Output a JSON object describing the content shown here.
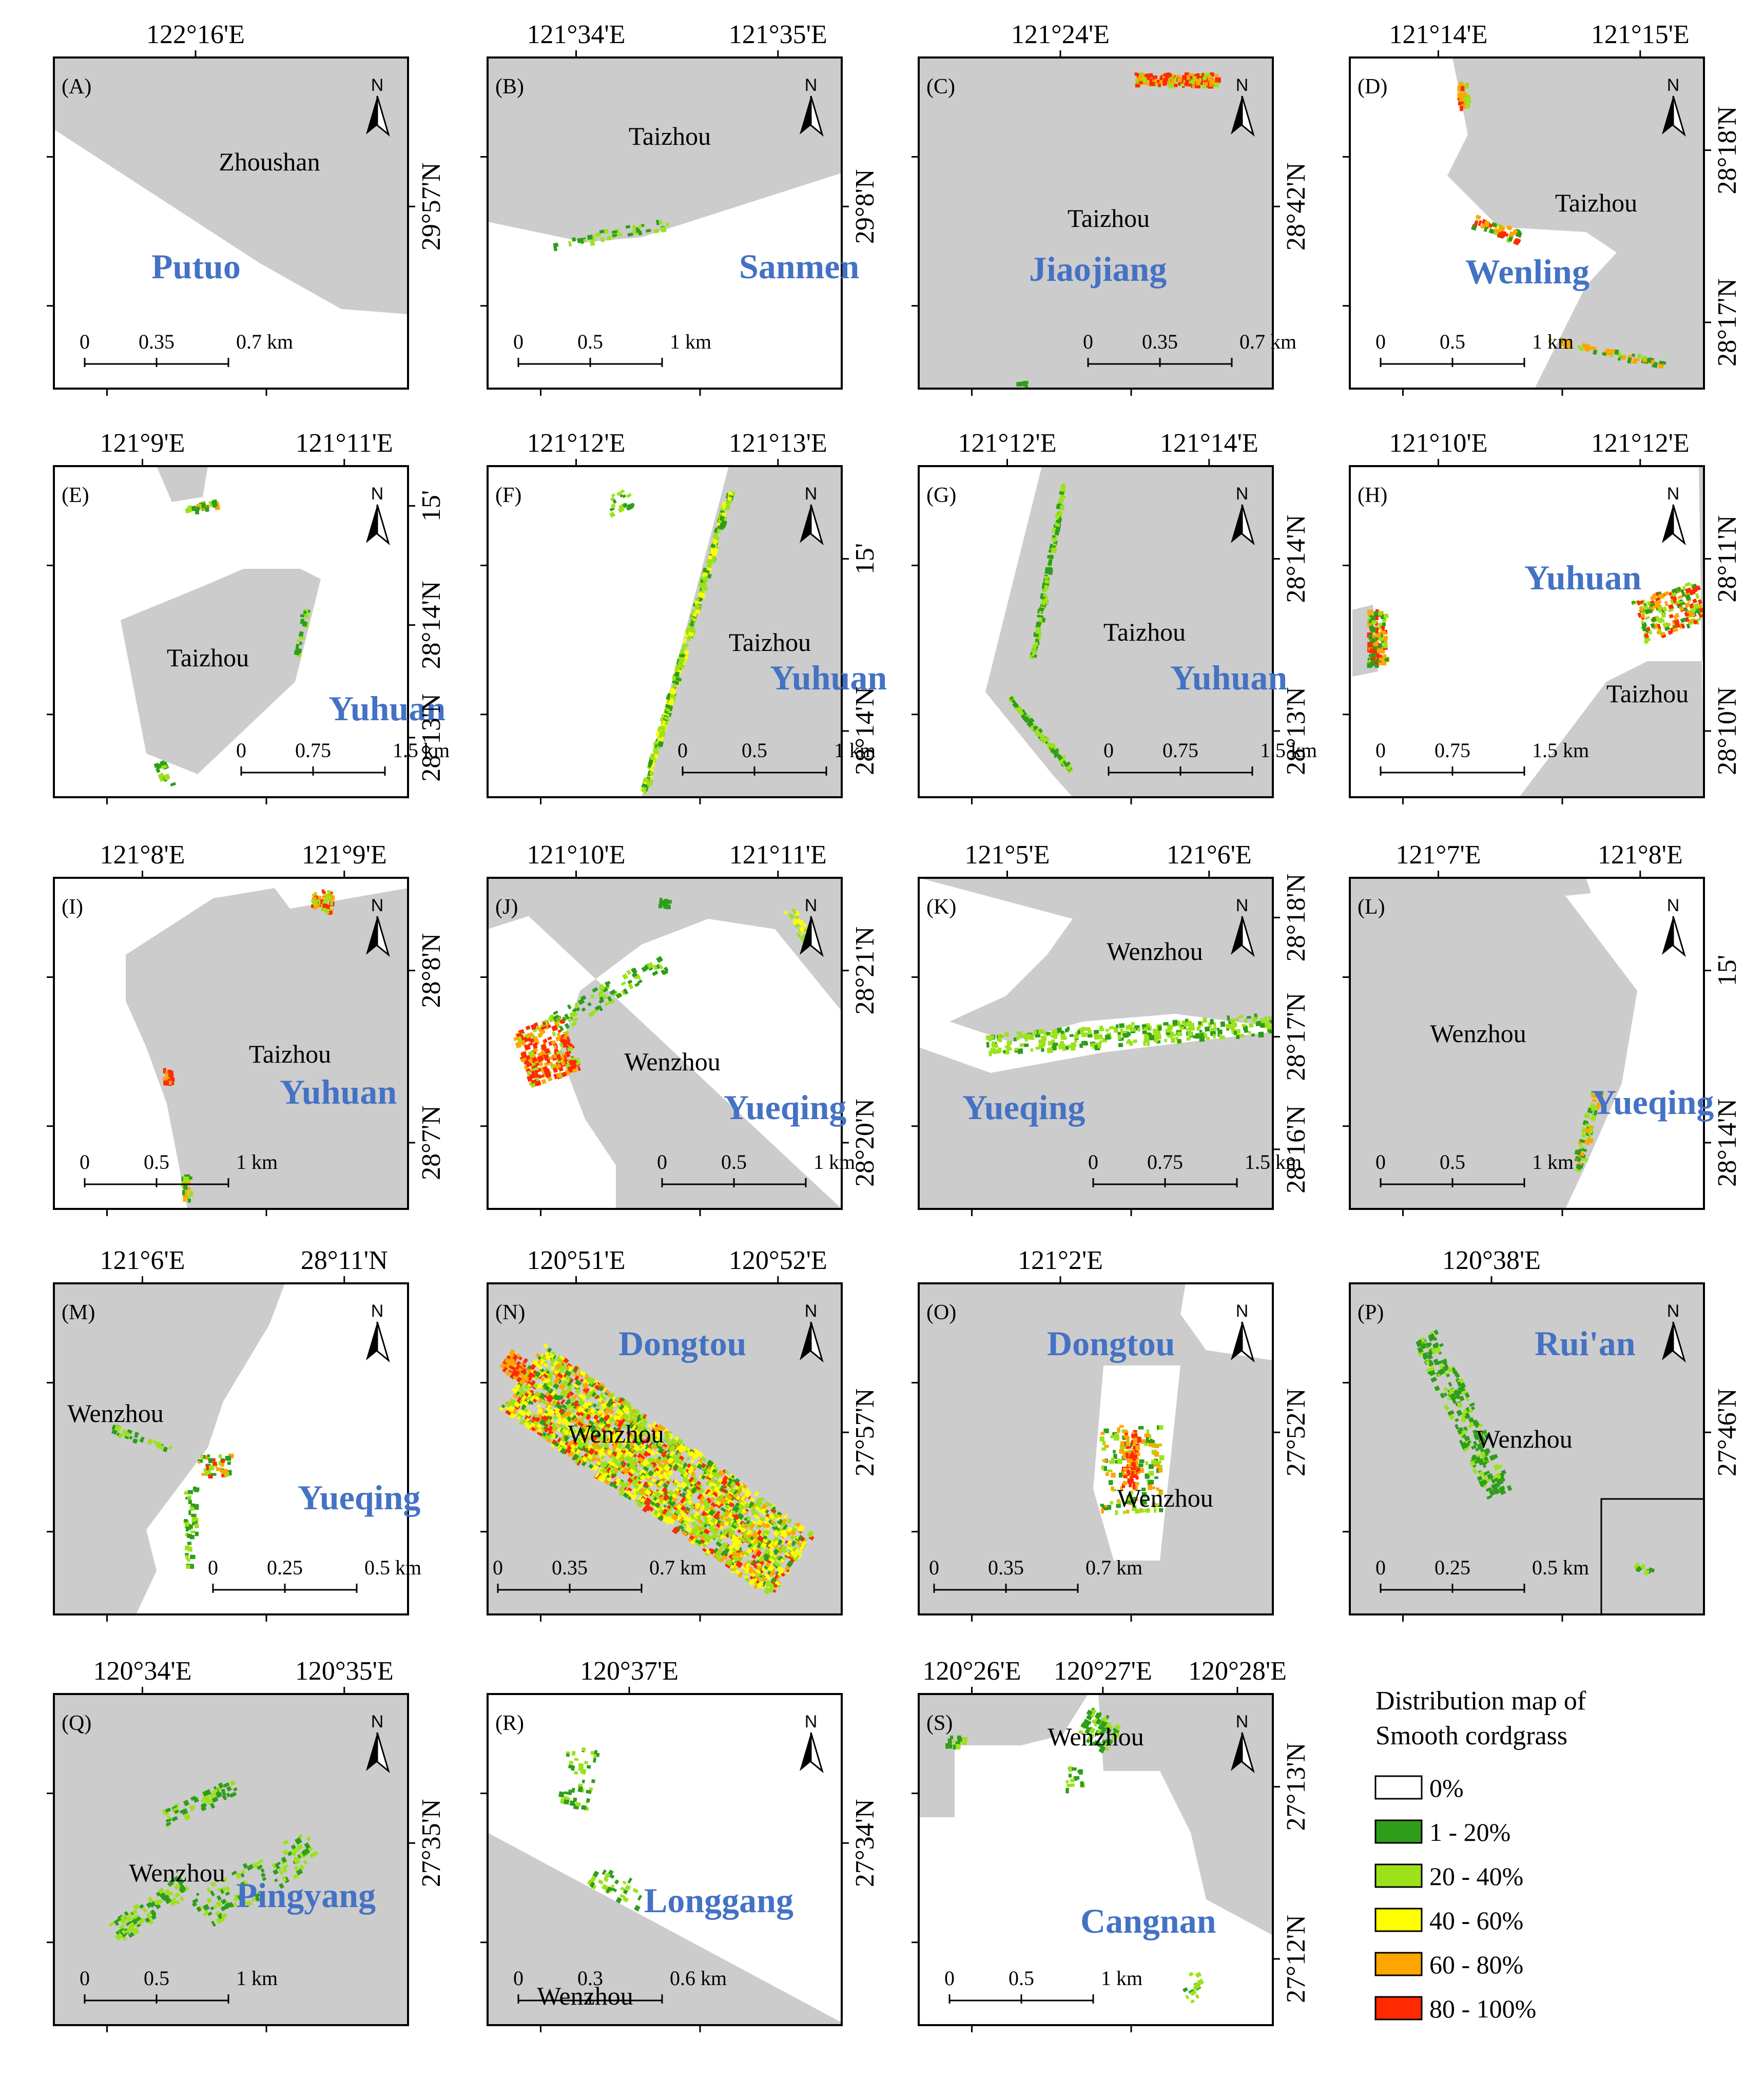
{
  "panels": [
    {
      "id": "A",
      "label": "(A)",
      "place": "Zhoushan",
      "county": "Putuo",
      "lon": [
        "122°16'E"
      ],
      "lat": [
        "29°57'N"
      ],
      "scale": [
        "0",
        "0.35",
        "0.7 km"
      ]
    },
    {
      "id": "B",
      "label": "(B)",
      "place": "Taizhou",
      "county": "Sanmen",
      "lon": [
        "121°34'E",
        "121°35'E"
      ],
      "lat": [
        "29°8'N"
      ],
      "scale": [
        "0",
        "0.5",
        "1 km"
      ]
    },
    {
      "id": "C",
      "label": "(C)",
      "place": "Taizhou",
      "county": "Jiaojiang",
      "lon": [
        "121°24'E"
      ],
      "lat": [
        "28°42'N"
      ],
      "scale": [
        "0",
        "0.35",
        "0.7 km"
      ]
    },
    {
      "id": "D",
      "label": "(D)",
      "place": "Taizhou",
      "county": "Wenling",
      "lon": [
        "121°14'E",
        "121°15'E"
      ],
      "lat": [
        "28°18'N",
        "28°17'N"
      ],
      "scale": [
        "0",
        "0.5",
        "1 km"
      ]
    },
    {
      "id": "E",
      "label": "(E)",
      "place": "Taizhou",
      "county": "Yuhuan",
      "lon": [
        "121°9'E",
        "121°11'E"
      ],
      "lat": [
        "15'",
        "28°14'N",
        "28°13'N"
      ],
      "scale": [
        "0",
        "0.75",
        "1.5 km"
      ]
    },
    {
      "id": "F",
      "label": "(F)",
      "place": "Taizhou",
      "county": "Yuhuan",
      "lon": [
        "121°12'E",
        "121°13'E"
      ],
      "lat": [
        "15'",
        "28°14'N"
      ],
      "scale": [
        "0",
        "0.5",
        "1 km"
      ]
    },
    {
      "id": "G",
      "label": "(G)",
      "place": "Taizhou",
      "county": "Yuhuan",
      "lon": [
        "121°12'E",
        "121°14'E"
      ],
      "lat": [
        "28°14'N",
        "28°13'N"
      ],
      "scale": [
        "0",
        "0.75",
        "1.5 km"
      ]
    },
    {
      "id": "H",
      "label": "(H)",
      "place": "Taizhou",
      "county": "Yuhuan",
      "lon": [
        "121°10'E",
        "121°12'E"
      ],
      "lat": [
        "28°11'N",
        "28°10'N"
      ],
      "scale": [
        "0",
        "0.75",
        "1.5 km"
      ]
    },
    {
      "id": "I",
      "label": "(I)",
      "place": "Taizhou",
      "county": "Yuhuan",
      "lon": [
        "121°8'E",
        "121°9'E"
      ],
      "lat": [
        "28°8'N",
        "28°7'N"
      ],
      "scale": [
        "0",
        "0.5",
        "1 km"
      ]
    },
    {
      "id": "J",
      "label": "(J)",
      "place": "Wenzhou",
      "county": "Yueqing",
      "lon": [
        "121°10'E",
        "121°11'E"
      ],
      "lat": [
        "28°21'N",
        "28°20'N"
      ],
      "scale": [
        "0",
        "0.5",
        "1 km"
      ]
    },
    {
      "id": "K",
      "label": "(K)",
      "place": "Wenzhou",
      "county": "Yueqing",
      "lon": [
        "121°5'E",
        "121°6'E"
      ],
      "lat": [
        "28°18'N",
        "28°17'N",
        "28°16'N"
      ],
      "scale": [
        "0",
        "0.75",
        "1.5 km"
      ]
    },
    {
      "id": "L",
      "label": "(L)",
      "place": "Wenzhou",
      "county": "Yueqing",
      "lon": [
        "121°7'E",
        "121°8'E"
      ],
      "lat": [
        "15'",
        "28°14'N"
      ],
      "scale": [
        "0",
        "0.5",
        "1 km"
      ]
    },
    {
      "id": "M",
      "label": "(M)",
      "place": "Wenzhou",
      "county": "Yueqing",
      "lon": [
        "121°6'E",
        "28°11'N"
      ],
      "lat": [],
      "scale": [
        "0",
        "0.25",
        "0.5 km"
      ]
    },
    {
      "id": "N",
      "label": "(N)",
      "place": "Wenzhou",
      "county": "Dongtou",
      "lon": [
        "120°51'E",
        "120°52'E"
      ],
      "lat": [
        "27°57'N"
      ],
      "scale": [
        "0",
        "0.35",
        "0.7 km"
      ]
    },
    {
      "id": "O",
      "label": "(O)",
      "place": "Wenzhou",
      "county": "Dongtou",
      "lon": [
        "121°2'E"
      ],
      "lat": [
        "27°52'N"
      ],
      "scale": [
        "0",
        "0.35",
        "0.7 km"
      ]
    },
    {
      "id": "P",
      "label": "(P)",
      "place": "Wenzhou",
      "county": "Rui'an",
      "lon": [
        "120°38'E"
      ],
      "lat": [
        "27°46'N"
      ],
      "scale": [
        "0",
        "0.25",
        "0.5 km"
      ]
    },
    {
      "id": "Q",
      "label": "(Q)",
      "place": "Wenzhou",
      "county": "Pingyang",
      "lon": [
        "120°34'E",
        "120°35'E"
      ],
      "lat": [
        "27°35'N"
      ],
      "scale": [
        "0",
        "0.5",
        "1 km"
      ]
    },
    {
      "id": "R",
      "label": "(R)",
      "place": "Wenzhou",
      "county": "Longgang",
      "lon": [
        "120°37'E"
      ],
      "lat": [
        "27°34'N"
      ],
      "scale": [
        "0",
        "0.3",
        "0.6 km"
      ]
    },
    {
      "id": "S",
      "label": "(S)",
      "place": "Wenzhou",
      "county": "Cangnan",
      "lon": [
        "120°26'E",
        "120°27'E",
        "120°28'E"
      ],
      "lat": [
        "27°13'N",
        "27°12'N"
      ],
      "scale": [
        "0",
        "0.5",
        "1 km"
      ]
    }
  ],
  "north_label": "N",
  "legend": {
    "title_line1": "Distribution map of",
    "title_line2": "Smooth cordgrass",
    "items": [
      {
        "label": "0%",
        "color": "#ffffff"
      },
      {
        "label": "1 - 20%",
        "color": "#2e9e1a"
      },
      {
        "label": "20 - 40%",
        "color": "#9be21a"
      },
      {
        "label": "40 - 60%",
        "color": "#ffff00"
      },
      {
        "label": "60 - 80%",
        "color": "#ffa500"
      },
      {
        "label": "80 - 100%",
        "color": "#ff2a00"
      }
    ]
  },
  "colors": {
    "land": "#cccccc",
    "county_text": "#4472c4"
  }
}
